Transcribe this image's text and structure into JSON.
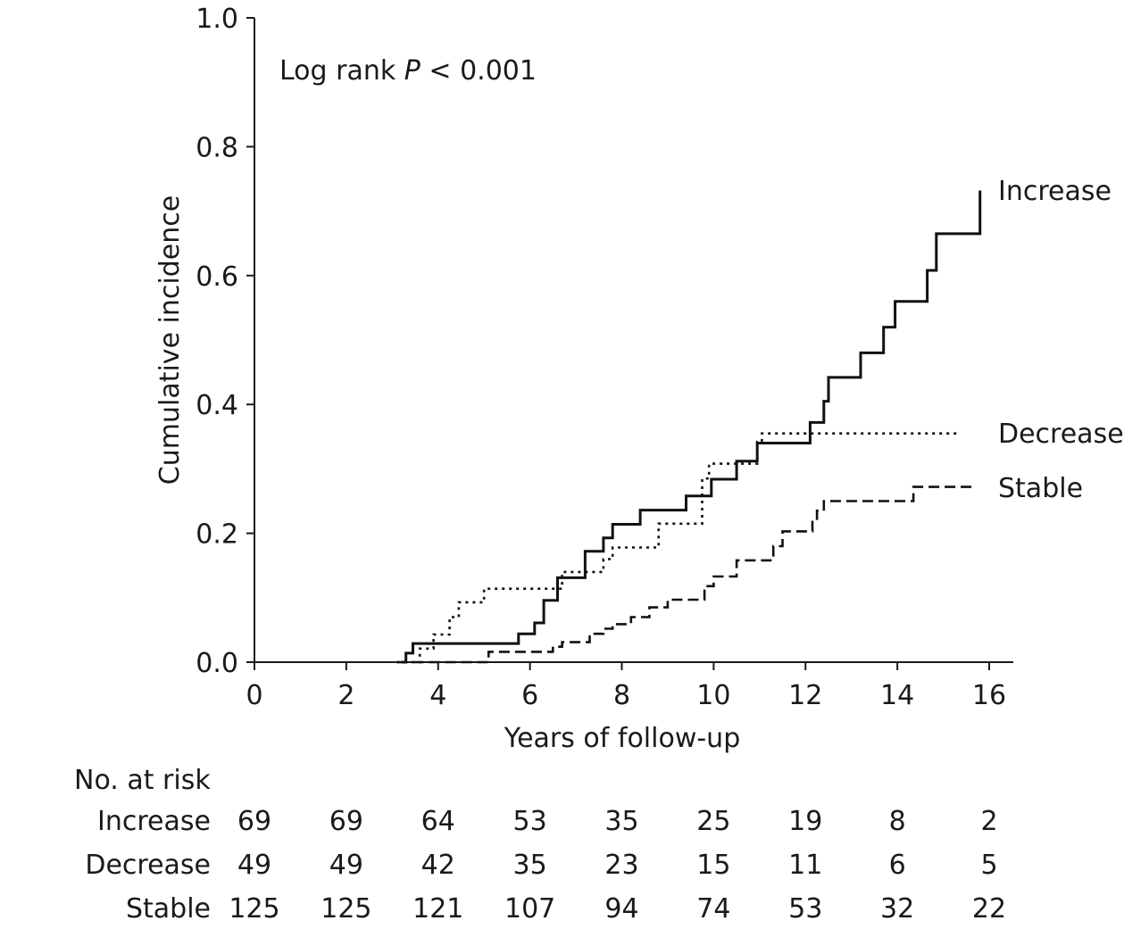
{
  "chart_data": {
    "type": "line",
    "style": "step",
    "xlabel": "Years of follow-up",
    "ylabel": "Cumulative incidence",
    "xlim": [
      0,
      16
    ],
    "ylim": [
      0,
      1.0
    ],
    "x_ticks": [
      0,
      2,
      4,
      6,
      8,
      10,
      12,
      14,
      16
    ],
    "y_ticks": [
      "0.0",
      "0.2",
      "0.4",
      "0.6",
      "0.8",
      "1.0"
    ],
    "grid": false,
    "annotation": {
      "prefix": "Log rank ",
      "italic": "P",
      "suffix": " < 0.001"
    },
    "series": [
      {
        "name": "Increase",
        "line_style": "solid",
        "x": [
          3.2,
          3.3,
          3.45,
          5.75,
          6.1,
          6.3,
          6.6,
          7.2,
          7.6,
          7.8,
          8.4,
          9.4,
          9.95,
          10.5,
          10.95,
          12.1,
          12.4,
          12.5,
          13.2,
          13.7,
          13.95,
          14.65,
          14.85,
          15.8
        ],
        "y": [
          0.0,
          0.014,
          0.029,
          0.044,
          0.061,
          0.096,
          0.131,
          0.172,
          0.193,
          0.214,
          0.236,
          0.258,
          0.284,
          0.312,
          0.34,
          0.372,
          0.405,
          0.442,
          0.48,
          0.52,
          0.56,
          0.608,
          0.665,
          0.732
        ]
      },
      {
        "name": "Decrease",
        "line_style": "dotted",
        "x": [
          3.1,
          3.6,
          3.9,
          4.25,
          4.45,
          5.0,
          6.7,
          7.6,
          7.8,
          8.8,
          9.75,
          9.9,
          10.95,
          11.05,
          15.3
        ],
        "y": [
          0.0,
          0.021,
          0.043,
          0.07,
          0.093,
          0.114,
          0.14,
          0.16,
          0.178,
          0.215,
          0.285,
          0.308,
          0.342,
          0.355,
          0.355
        ],
        "y_end": 0.355
      },
      {
        "name": "Stable",
        "line_style": "dashed",
        "x": [
          3.1,
          5.1,
          6.5,
          6.7,
          7.3,
          7.6,
          7.8,
          8.2,
          8.6,
          9.0,
          9.8,
          10.0,
          10.5,
          11.3,
          11.5,
          12.15,
          12.25,
          12.4,
          14.35,
          15.7
        ],
        "y": [
          0.0,
          0.016,
          0.024,
          0.031,
          0.044,
          0.052,
          0.059,
          0.07,
          0.085,
          0.097,
          0.118,
          0.133,
          0.158,
          0.18,
          0.203,
          0.22,
          0.235,
          0.25,
          0.272,
          0.272
        ]
      }
    ],
    "at_risk": {
      "title": "No. at risk",
      "times": [
        0,
        2,
        4,
        6,
        8,
        10,
        12,
        14,
        16
      ],
      "rows": [
        {
          "label": "Increase",
          "values": [
            "69",
            "69",
            "64",
            "53",
            "35",
            "25",
            "19",
            "8",
            "2"
          ]
        },
        {
          "label": "Decrease",
          "values": [
            "49",
            "49",
            "42",
            "35",
            "23",
            "15",
            "11",
            "6",
            "5"
          ]
        },
        {
          "label": "Stable",
          "values": [
            "125",
            "125",
            "121",
            "107",
            "94",
            "74",
            "53",
            "32",
            "22"
          ]
        }
      ]
    },
    "colors": {
      "line": "#111111",
      "axis": "#1a1a1a"
    }
  }
}
